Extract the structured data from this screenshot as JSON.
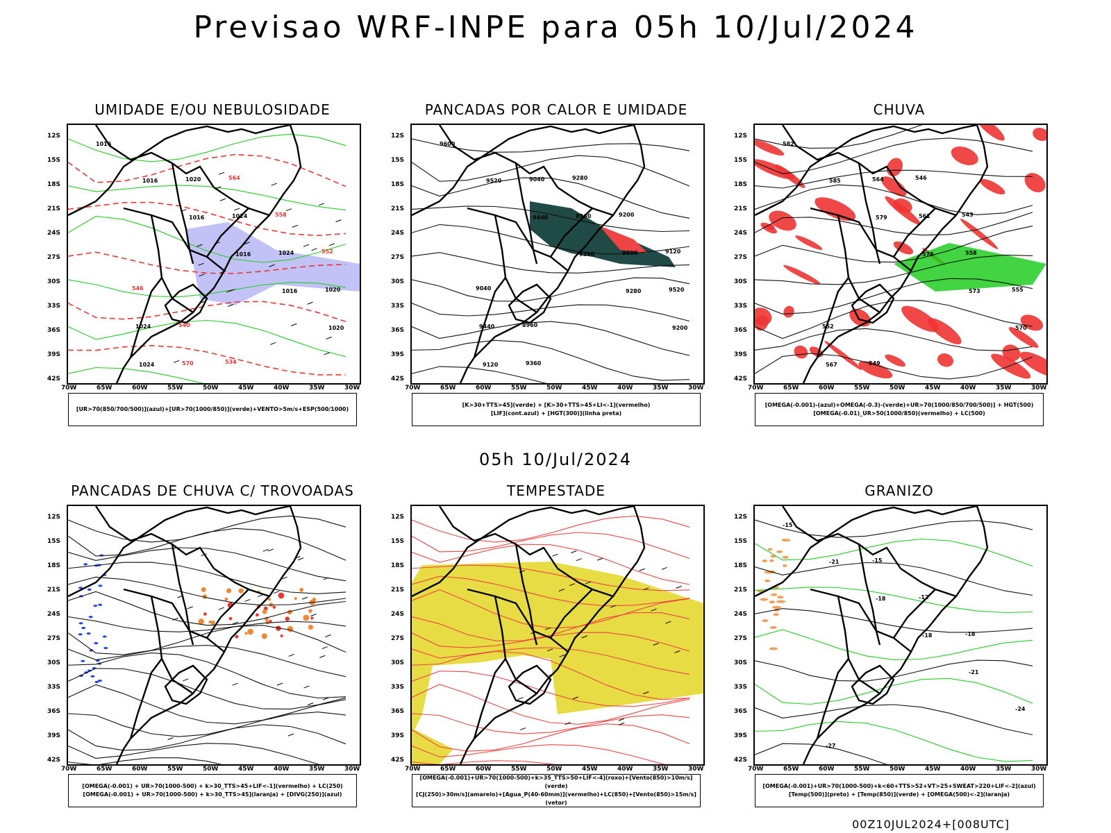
{
  "header": {
    "title": "Previsao WRF-INPE  para 05h 10/Jul/2024"
  },
  "mid_title": "05h 10/Jul/2024",
  "footer": "00Z10JUL2024+[008UTC]",
  "axes": {
    "lat_labels": [
      "12S",
      "15S",
      "18S",
      "21S",
      "24S",
      "27S",
      "30S",
      "33S",
      "36S",
      "39S",
      "42S"
    ],
    "lon_labels": [
      "70W",
      "65W",
      "60W",
      "55W",
      "50W",
      "45W",
      "40W",
      "35W",
      "30W"
    ]
  },
  "panels": [
    {
      "title": "UMIDADE E/OU NEBULOSIDADE",
      "caption_lines": [
        "[UR>70(850/700/500)](azul)+[UR>70(1000/850)](verde)+VENTO>5m/s+ESP(500/1000)"
      ],
      "contour_labels": [
        "1016",
        "1016",
        "1016",
        "1016",
        "1016",
        "1020",
        "1024",
        "1020",
        "1024",
        "1024",
        "1020",
        "1024",
        "570",
        "564",
        "558",
        "552",
        "546",
        "540",
        "534"
      ],
      "colors": {
        "primary": "#22cc22",
        "secondary": "#7777ee",
        "lines": "#ee3333"
      }
    },
    {
      "title": "PANCADAS POR CALOR E UMIDADE",
      "caption_lines": [
        "[K>30+TTS>45](verde) + [K>30+TTS>45+LI<-1](vermelho)",
        "[LIF](cont.azul) + [HGT(300)](linha preta)"
      ],
      "contour_labels": [
        "9600",
        "9520",
        "9440",
        "9360",
        "9280",
        "9200",
        "9120",
        "9040",
        "8960",
        "9600",
        "9520",
        "9440",
        "9360",
        "9280",
        "9200",
        "9120",
        "9040",
        "8960"
      ],
      "colors": {
        "primary": "#1f4a46",
        "secondary": "#ee4444",
        "lines": "#2244ee"
      }
    },
    {
      "title": "CHUVA",
      "caption_lines": [
        "[OMEGA(-0.001)-(azul)+OMEGA(-0.3)-(verde)+UR>70(1000/850/700/500)] + HGT(500)",
        "[OMEGA(-0.01)_UR>50(1000/850)(vermelho) + LC(500)"
      ],
      "contour_labels": [
        "582",
        "585",
        "579",
        "576",
        "573",
        "570",
        "567",
        "564",
        "561",
        "558",
        "555",
        "552",
        "549",
        "546",
        "543"
      ],
      "colors": {
        "primary": "#ee3333",
        "secondary": "#22cc22",
        "lines": "#2244ee"
      }
    },
    {
      "title": "PANCADAS DE CHUVA C/ TROVOADAS",
      "caption_lines": [
        "[OMEGA(-0.001) + UR>70(1000-500) + k>30_TTS>45+LIF<-1](vermelho) + LC(250)",
        "[OMEGA(-0.001) + UR>70(1000-500) + k>30_TTS>45](laranja) + [DIVG(250)](azul)"
      ],
      "contour_labels": [],
      "colors": {
        "primary": "#ee8833",
        "secondary": "#ee3333",
        "lines": "#2244ee"
      }
    },
    {
      "title": "TEMPESTADE",
      "caption_lines": [
        "[OMEGA(-0.001)+UR>70(1000-500)+k>35_TTS>50+LIF<-4](roxo)+[Vento(850)>10m/s](verde)",
        "[CJ(250)>30m/s](amarelo)+[Agua_P(40-60mm)](vermelho)+LC(850)+[Vento(850)>15m/s](vetor)"
      ],
      "contour_labels": [],
      "colors": {
        "primary": "#e6d830",
        "secondary": "#22cc22",
        "lines": "#ee4444"
      }
    },
    {
      "title": "GRANIZO",
      "caption_lines": [
        "[OMEGA(-0.001)+UR>70(1000-500)+k<60+TTS>52+VT>25+SWEAT>220+LIF<-2](azul)",
        "[Temp(500)](preto) + [Temp(850)](verde) + [OMEGA(500)<-2](laranja)"
      ],
      "contour_labels": [
        "-15",
        "-21",
        "-18",
        "-18",
        "-21",
        "-24",
        "-27",
        "-15",
        "-12",
        "-18"
      ],
      "colors": {
        "primary": "#22cc22",
        "secondary": "#ee8833",
        "lines": "#111111"
      }
    }
  ]
}
